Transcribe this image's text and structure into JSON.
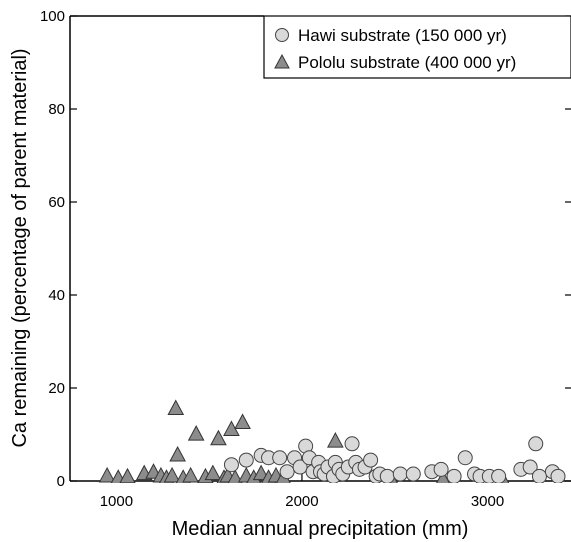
{
  "chart_data": {
    "type": "scatter",
    "xlabel": "Median annual precipitation (mm)",
    "ylabel": "Ca remaining (percentage of parent material)",
    "xlim": [
      750,
      3450
    ],
    "ylim": [
      0,
      100
    ],
    "xticks": [
      1000,
      2000,
      3000
    ],
    "yticks": [
      0,
      20,
      40,
      60,
      80,
      100
    ],
    "grid": false,
    "legend_position": "top-right",
    "series": [
      {
        "name": "Hawi substrate (150 000 yr)",
        "marker": "circle",
        "color": "#d9d9d9",
        "points": [
          [
            1620,
            3.5
          ],
          [
            1700,
            4.5
          ],
          [
            1780,
            5.5
          ],
          [
            1820,
            5
          ],
          [
            1880,
            5
          ],
          [
            1920,
            2
          ],
          [
            1960,
            5
          ],
          [
            1990,
            3
          ],
          [
            2020,
            7.5
          ],
          [
            2040,
            5
          ],
          [
            2060,
            2
          ],
          [
            2090,
            4
          ],
          [
            2100,
            2
          ],
          [
            2120,
            1.5
          ],
          [
            2140,
            3
          ],
          [
            2170,
            1
          ],
          [
            2180,
            4
          ],
          [
            2200,
            2.5
          ],
          [
            2220,
            1.5
          ],
          [
            2250,
            3
          ],
          [
            2270,
            8
          ],
          [
            2290,
            4
          ],
          [
            2310,
            2.5
          ],
          [
            2340,
            3
          ],
          [
            2370,
            4.5
          ],
          [
            2400,
            1
          ],
          [
            2420,
            1.5
          ],
          [
            2460,
            1
          ],
          [
            2530,
            1.5
          ],
          [
            2600,
            1.5
          ],
          [
            2700,
            2
          ],
          [
            2750,
            2.5
          ],
          [
            2820,
            1
          ],
          [
            2880,
            5
          ],
          [
            2930,
            1.5
          ],
          [
            2960,
            1
          ],
          [
            3010,
            1
          ],
          [
            3060,
            1
          ],
          [
            3180,
            2.5
          ],
          [
            3230,
            3
          ],
          [
            3260,
            8
          ],
          [
            3280,
            1
          ],
          [
            3350,
            2
          ],
          [
            3380,
            1
          ]
        ]
      },
      {
        "name": "Pololu substrate (400 000 yr)",
        "marker": "triangle",
        "color": "#8c8c8c",
        "points": [
          [
            950,
            1
          ],
          [
            1010,
            0.5
          ],
          [
            1060,
            0.8
          ],
          [
            1150,
            1.5
          ],
          [
            1200,
            1.8
          ],
          [
            1240,
            1
          ],
          [
            1270,
            0.5
          ],
          [
            1300,
            1
          ],
          [
            1320,
            15.5
          ],
          [
            1330,
            5.5
          ],
          [
            1360,
            0.5
          ],
          [
            1400,
            1
          ],
          [
            1430,
            10
          ],
          [
            1480,
            0.8
          ],
          [
            1520,
            1.5
          ],
          [
            1550,
            9
          ],
          [
            1580,
            0.5
          ],
          [
            1600,
            1
          ],
          [
            1620,
            11
          ],
          [
            1640,
            0.5
          ],
          [
            1680,
            12.5
          ],
          [
            1700,
            1
          ],
          [
            1740,
            0.5
          ],
          [
            1780,
            1.5
          ],
          [
            1820,
            0.5
          ],
          [
            1860,
            1
          ],
          [
            1900,
            0.5
          ],
          [
            2180,
            8.5
          ],
          [
            2480,
            0.3
          ],
          [
            2760,
            0.3
          ],
          [
            3080,
            0.3
          ]
        ]
      }
    ]
  }
}
